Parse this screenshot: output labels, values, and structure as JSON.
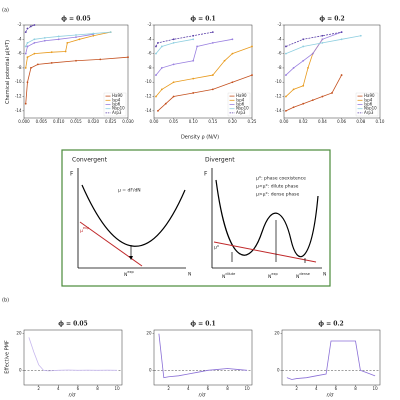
{
  "panel_a": {
    "label": "(a)",
    "xlabel": "Density ρ (N/V)",
    "ylabel": "Chemical potential μ(k",
    "ylabel_sub": "B",
    "ylabel_end": "T)"
  },
  "panel_b": {
    "label": "(b)",
    "xlabel": "r/σ",
    "ylabel": "Effective PMF"
  },
  "diagram": {
    "convergent": {
      "title": "Convergent",
      "f": "F",
      "mu_def": "μ = dF/dN",
      "mu": "μ",
      "mu_sup": "exp",
      "n": "N",
      "n_sup": "exp",
      "axis": "N"
    },
    "divergent": {
      "title": "Divergent",
      "f": "F",
      "notes": [
        "μ*: phase coexistence",
        "μ<μ*: dilute phase",
        "μ>μ*: dense phase"
      ],
      "mu": "μ*",
      "n_dilute": "N",
      "n_dilute_sup": "dilute",
      "n_exp": "N",
      "n_exp_sup": "exp",
      "n_dense": "N",
      "n_dense_sup": "dense",
      "axis": "N"
    }
  },
  "chart_data": [
    {
      "type": "line",
      "title": "ϕ = 0.05",
      "legend": "lower right",
      "markers": true,
      "xlim": [
        0,
        0.03
      ],
      "xticks": [
        {
          "value": 0,
          "label": "0.000"
        },
        {
          "value": 0.005,
          "label": "0.005"
        },
        {
          "value": 0.01,
          "label": "0.010"
        },
        {
          "value": 0.015,
          "label": "0.015"
        },
        {
          "value": 0.02,
          "label": "0.020"
        },
        {
          "value": 0.025,
          "label": "0.025"
        },
        {
          "value": 0.03,
          "label": "0.030"
        }
      ],
      "ylim": [
        -15,
        -2
      ],
      "yticks": [
        -14,
        -12,
        -10,
        -8,
        -6,
        -4,
        -2
      ],
      "series": [
        {
          "name": "Ha90",
          "color": "#c4501e",
          "linestyle": "solid",
          "x": [
            0.0005,
            0.001,
            0.002,
            0.004,
            0.008,
            0.015,
            0.022,
            0.03
          ],
          "values": [
            -13,
            -10,
            -8,
            -7.5,
            -7.3,
            -7,
            -6.8,
            -6.5
          ]
        },
        {
          "name": "lsp4",
          "color": "#e89a1c",
          "linestyle": "solid",
          "x": [
            0.0005,
            0.001,
            0.003,
            0.008,
            0.012,
            0.0125,
            0.016,
            0.02,
            0.025
          ],
          "values": [
            -8,
            -6.5,
            -6,
            -5.8,
            -5.7,
            -4.5,
            -4,
            -3.5,
            -3
          ]
        },
        {
          "name": "lsp6",
          "color": "#9a80e0",
          "linestyle": "solid",
          "x": [
            0.0005,
            0.001,
            0.003,
            0.006,
            0.01,
            0.015,
            0.02
          ],
          "values": [
            -6,
            -5,
            -4.5,
            -4.2,
            -4,
            -3.7,
            -3.3
          ]
        },
        {
          "name": "Nsp10",
          "color": "#8fcfe0",
          "linestyle": "solid",
          "x": [
            0.0005,
            0.001,
            0.003,
            0.006,
            0.01,
            0.015,
            0.02,
            0.025
          ],
          "values": [
            -5,
            -4.5,
            -4,
            -3.8,
            -3.6,
            -3.4,
            -3.2,
            -3
          ]
        },
        {
          "name": "Arp3",
          "color": "#5a3fa8",
          "linestyle": "dashed",
          "x": [
            0.0005,
            0.001,
            0.002,
            0.003
          ],
          "values": [
            -3,
            -2.5,
            -2.2,
            -2
          ]
        }
      ]
    },
    {
      "type": "line",
      "title": "ϕ = 0.1",
      "legend": "lower right",
      "markers": true,
      "xlim": [
        0,
        0.25
      ],
      "xticks": [
        {
          "value": 0,
          "label": "0.00"
        },
        {
          "value": 0.05,
          "label": "0.05"
        },
        {
          "value": 0.1,
          "label": "0.10"
        },
        {
          "value": 0.15,
          "label": "0.15"
        },
        {
          "value": 0.2,
          "label": "0.20"
        },
        {
          "value": 0.25,
          "label": "0.25"
        }
      ],
      "ylim": [
        -15,
        -2
      ],
      "yticks": [
        -14,
        -12,
        -10,
        -8,
        -6,
        -4,
        -2
      ],
      "series": [
        {
          "name": "Ha90",
          "color": "#c4501e",
          "linestyle": "solid",
          "x": [
            0.01,
            0.03,
            0.05,
            0.1,
            0.15,
            0.2,
            0.25
          ],
          "values": [
            -14,
            -13,
            -12,
            -11.5,
            -11,
            -10,
            -9
          ]
        },
        {
          "name": "lsp4",
          "color": "#e89a1c",
          "linestyle": "solid",
          "x": [
            0.005,
            0.02,
            0.05,
            0.1,
            0.15,
            0.18,
            0.2,
            0.25
          ],
          "values": [
            -12,
            -11,
            -10,
            -9.5,
            -9,
            -7,
            -6,
            -5
          ]
        },
        {
          "name": "lsp6",
          "color": "#9a80e0",
          "linestyle": "solid",
          "x": [
            0.005,
            0.02,
            0.05,
            0.1,
            0.11,
            0.15,
            0.2
          ],
          "values": [
            -9,
            -8,
            -7.5,
            -7,
            -5,
            -4.5,
            -4
          ]
        },
        {
          "name": "Nsp10",
          "color": "#8fcfe0",
          "linestyle": "solid",
          "x": [
            0.005,
            0.02,
            0.05,
            0.1
          ],
          "values": [
            -6,
            -5,
            -4.5,
            -4
          ]
        },
        {
          "name": "Arp3",
          "color": "#5a3fa8",
          "linestyle": "dashed",
          "x": [
            0.005,
            0.01,
            0.05,
            0.1,
            0.15
          ],
          "values": [
            -5,
            -4.5,
            -4,
            -3.5,
            -3
          ]
        }
      ]
    },
    {
      "type": "line",
      "title": "ϕ = 0.2",
      "legend": "lower right",
      "markers": true,
      "xlim": [
        0,
        0.1
      ],
      "xticks": [
        {
          "value": 0,
          "label": "0.00"
        },
        {
          "value": 0.02,
          "label": "0.02"
        },
        {
          "value": 0.04,
          "label": "0.04"
        },
        {
          "value": 0.06,
          "label": "0.06"
        },
        {
          "value": 0.08,
          "label": "0.08"
        },
        {
          "value": 0.1,
          "label": "0.10"
        }
      ],
      "ylim": [
        -15,
        -2
      ],
      "yticks": [
        -14,
        -12,
        -10,
        -8,
        -6,
        -4,
        -2
      ],
      "series": [
        {
          "name": "Ha90",
          "color": "#c4501e",
          "linestyle": "solid",
          "x": [
            0.002,
            0.01,
            0.02,
            0.03,
            0.04,
            0.05,
            0.06
          ],
          "values": [
            -14,
            -13.5,
            -13,
            -12.5,
            -12,
            -11.5,
            -9
          ]
        },
        {
          "name": "lsp4",
          "color": "#e89a1c",
          "linestyle": "solid",
          "x": [
            0.002,
            0.01,
            0.02,
            0.025,
            0.03,
            0.04
          ],
          "values": [
            -12,
            -11,
            -10.5,
            -8,
            -6,
            -4
          ]
        },
        {
          "name": "lsp6",
          "color": "#9a80e0",
          "linestyle": "solid",
          "x": [
            0.002,
            0.01,
            0.02,
            0.03,
            0.04,
            0.06
          ],
          "values": [
            -9,
            -8,
            -7,
            -6,
            -4,
            -3
          ]
        },
        {
          "name": "Nsp10",
          "color": "#8fcfe0",
          "linestyle": "solid",
          "x": [
            0.002,
            0.02,
            0.04,
            0.06,
            0.08
          ],
          "values": [
            -6,
            -5,
            -4.5,
            -4,
            -3.5
          ]
        },
        {
          "name": "Arp3",
          "color": "#5a3fa8",
          "linestyle": "dashed",
          "x": [
            0.002,
            0.02,
            0.04,
            0.06
          ],
          "values": [
            -5,
            -4,
            -3.5,
            -3
          ]
        }
      ]
    },
    {
      "type": "line",
      "title": "ϕ = 0.05",
      "reference_line": 0,
      "xlim": [
        0.5,
        10.5
      ],
      "xticks": [
        2,
        4,
        6,
        8,
        10
      ],
      "ylim": [
        -8,
        22
      ],
      "yticks": [
        0,
        20
      ],
      "series": [
        {
          "color": "#c7b8ee",
          "linestyle": "solid",
          "x": [
            1,
            1.5,
            2,
            2.5,
            3,
            4,
            5,
            6,
            7,
            8,
            9,
            10
          ],
          "values": [
            18,
            10,
            3,
            0,
            -0.3,
            0,
            0.2,
            0,
            0.1,
            0,
            0.1,
            0
          ]
        }
      ]
    },
    {
      "type": "line",
      "title": "ϕ = 0.1",
      "reference_line": 0,
      "xlim": [
        0.5,
        10.5
      ],
      "xticks": [
        2,
        4,
        6,
        8,
        10
      ],
      "ylim": [
        -8,
        22
      ],
      "yticks": [
        0,
        20
      ],
      "series": [
        {
          "color": "#8a6fd6",
          "linestyle": "solid",
          "x": [
            1,
            1.5,
            2,
            3,
            4,
            5,
            6,
            7,
            8,
            9,
            10
          ],
          "values": [
            20,
            -4,
            -3.5,
            -3,
            -2,
            -1,
            0,
            0.5,
            1,
            0.5,
            0
          ]
        }
      ]
    },
    {
      "type": "line",
      "title": "ϕ = 0.2",
      "reference_line": 0,
      "xlim": [
        0.5,
        10.5
      ],
      "xticks": [
        2,
        4,
        6,
        8,
        10
      ],
      "ylim": [
        -8,
        22
      ],
      "yticks": [
        0,
        20
      ],
      "series": [
        {
          "color": "#8a6fd6",
          "linestyle": "solid",
          "x": [
            1,
            1.5,
            2,
            3,
            4,
            5,
            5.5,
            7,
            8,
            8.5,
            9,
            9.5,
            10
          ],
          "values": [
            -4,
            -5,
            -4.5,
            -4,
            -3,
            -2,
            16,
            16,
            16,
            0,
            -1,
            -2,
            -3
          ]
        }
      ]
    }
  ]
}
